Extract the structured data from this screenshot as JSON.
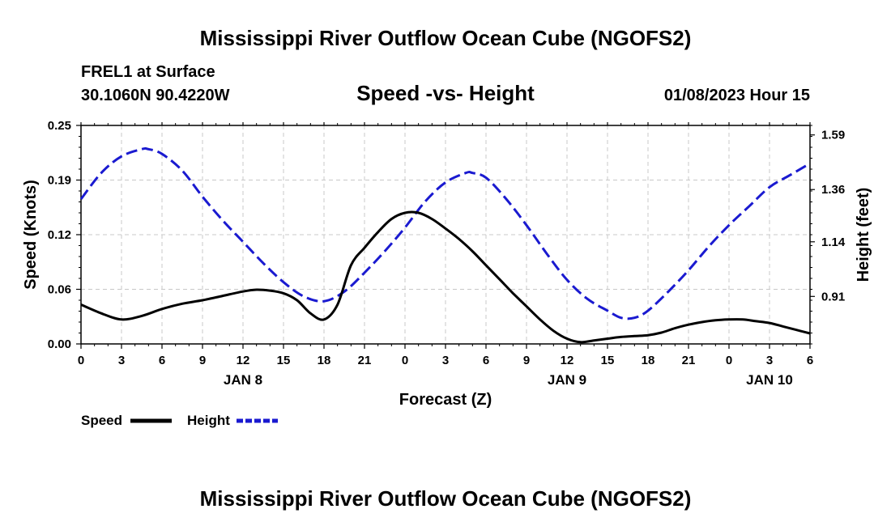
{
  "header": {
    "title": "Mississippi River Outflow Ocean Cube (NGOFS2)",
    "station": "FREL1 at Surface",
    "coords": "30.1060N  90.4220W",
    "subtitle": "Speed -vs- Height",
    "date": "01/08/2023 Hour 15",
    "footer_title": "Mississippi River Outflow Ocean Cube (NGOFS2)"
  },
  "chart_data": {
    "type": "line",
    "title": "Speed -vs- Height",
    "xlabel": "Forecast (Z)",
    "ylabel": "Speed (Knots)",
    "y2label": "Height (feet)",
    "x_hours": [
      0,
      3,
      6,
      9,
      12,
      15,
      18,
      21,
      24,
      27,
      30,
      33,
      36,
      39,
      42,
      45,
      48,
      51,
      54
    ],
    "x_tick_labels": [
      "0",
      "3",
      "6",
      "9",
      "12",
      "15",
      "18",
      "21",
      "0",
      "3",
      "6",
      "9",
      "12",
      "15",
      "18",
      "21",
      "0",
      "3",
      "6"
    ],
    "date_labels": [
      {
        "label": "JAN 8",
        "hour": 12
      },
      {
        "label": "JAN 9",
        "hour": 36
      },
      {
        "label": "JAN 10",
        "hour": 51
      }
    ],
    "xlim": [
      0,
      54
    ],
    "y_ticks": [
      "0.00",
      "0.06",
      "0.12",
      "0.19",
      "0.25"
    ],
    "ylim": [
      0,
      0.25
    ],
    "y2_ticks": [
      "0.91",
      "1.14",
      "1.36",
      "1.59"
    ],
    "y2lim": [
      0.71,
      1.63
    ],
    "grid": true,
    "legend": "bottom-left",
    "series": [
      {
        "name": "Speed",
        "axis": "left",
        "color": "#000000",
        "style": "solid",
        "x": [
          0,
          1.5,
          3,
          4.5,
          6,
          7.5,
          9,
          10.5,
          12,
          13,
          14,
          15,
          16,
          17,
          18,
          19,
          20,
          21,
          22,
          23,
          24,
          25,
          26,
          27,
          28,
          29,
          30,
          31,
          32,
          33,
          34,
          35,
          36,
          37,
          38,
          39,
          40,
          41,
          42,
          43,
          44,
          45,
          46,
          47,
          48,
          49,
          50,
          51,
          52,
          53,
          54
        ],
        "values": [
          0.045,
          0.035,
          0.028,
          0.032,
          0.04,
          0.046,
          0.05,
          0.055,
          0.06,
          0.062,
          0.061,
          0.058,
          0.05,
          0.035,
          0.028,
          0.045,
          0.09,
          0.11,
          0.128,
          0.143,
          0.15,
          0.15,
          0.143,
          0.132,
          0.12,
          0.106,
          0.09,
          0.074,
          0.058,
          0.043,
          0.028,
          0.015,
          0.006,
          0.002,
          0.004,
          0.006,
          0.008,
          0.009,
          0.01,
          0.013,
          0.018,
          0.022,
          0.025,
          0.027,
          0.028,
          0.028,
          0.026,
          0.024,
          0.02,
          0.016,
          0.012
        ]
      },
      {
        "name": "Height",
        "axis": "right",
        "color": "#1a1ad0",
        "style": "dashed",
        "x": [
          0,
          1.5,
          3,
          4.5,
          5,
          6,
          7.5,
          9,
          10.5,
          12,
          13.5,
          15,
          16.5,
          18,
          19.5,
          21,
          22.5,
          24,
          25.5,
          27,
          28.5,
          29,
          30,
          31.5,
          33,
          34.5,
          36,
          37.5,
          39,
          40,
          41,
          42,
          43.5,
          45,
          46.5,
          48,
          49.5,
          51,
          52.5,
          54
        ],
        "values": [
          1.32,
          1.43,
          1.5,
          1.53,
          1.53,
          1.51,
          1.44,
          1.33,
          1.23,
          1.14,
          1.05,
          0.97,
          0.91,
          0.89,
          0.93,
          1.01,
          1.1,
          1.2,
          1.31,
          1.39,
          1.43,
          1.43,
          1.41,
          1.32,
          1.21,
          1.09,
          0.98,
          0.9,
          0.85,
          0.82,
          0.82,
          0.85,
          0.93,
          1.02,
          1.12,
          1.21,
          1.29,
          1.37,
          1.42,
          1.47
        ]
      }
    ]
  }
}
